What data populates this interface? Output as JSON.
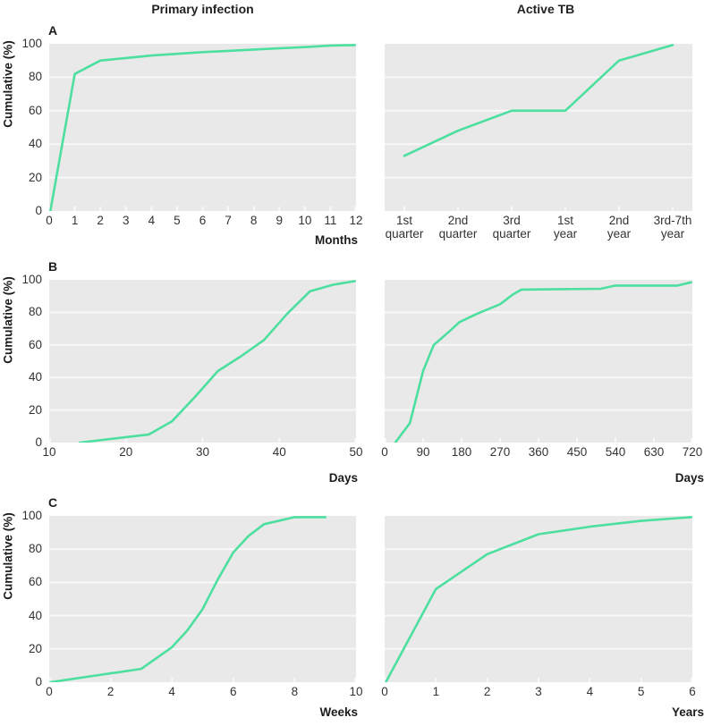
{
  "figure": {
    "column_titles": [
      "Primary infection",
      "Active TB"
    ],
    "panel_labels": [
      "A",
      "B",
      "C"
    ],
    "y_axis_label": "Cumulative (%)",
    "colors": {
      "line": "#4cdf9f",
      "plot_background": "#e9e9e9",
      "gridline": "#f8f8f8",
      "text": "#2f2f2f"
    }
  },
  "chart_data": [
    {
      "id": "primary-infection-months",
      "panel": "A",
      "column": "Primary infection",
      "type": "line",
      "xlabel": "Months",
      "xlim": [
        0,
        12
      ],
      "xticks": [
        0,
        1,
        2,
        3,
        4,
        5,
        6,
        7,
        8,
        9,
        10,
        11,
        12
      ],
      "ylabel": "Cumulative (%)",
      "ylim": [
        0,
        100
      ],
      "yticks": [
        0,
        20,
        40,
        60,
        80,
        100
      ],
      "grid": "horizontal white lines at 20,40,60,80",
      "legend": "none",
      "points": [
        [
          0,
          0
        ],
        [
          1,
          82
        ],
        [
          2,
          90
        ],
        [
          3,
          91.5
        ],
        [
          4,
          93
        ],
        [
          5,
          94
        ],
        [
          6,
          95
        ],
        [
          7,
          95.8
        ],
        [
          8,
          96.6
        ],
        [
          9,
          97.3
        ],
        [
          10,
          98
        ],
        [
          11,
          99
        ],
        [
          12,
          100
        ]
      ]
    },
    {
      "id": "active-tb-quarters-years",
      "panel": "A",
      "column": "Active TB",
      "type": "line",
      "xlabel": "",
      "categories": [
        "1st quarter",
        "2nd quarter",
        "3rd quarter",
        "1st year",
        "2nd year",
        "3rd-7th year"
      ],
      "values": [
        33,
        48,
        60,
        60,
        90,
        100
      ],
      "ylabel": "Cumulative (%)",
      "ylim": [
        0,
        100
      ],
      "yticks": [
        0,
        20,
        40,
        60,
        80,
        100
      ],
      "grid": "horizontal white lines at 20,40,60,80",
      "legend": "none"
    },
    {
      "id": "primary-infection-days",
      "panel": "B",
      "column": "Primary infection",
      "type": "line",
      "xlabel": "Days",
      "xlim": [
        10,
        50
      ],
      "xticks": [
        10,
        20,
        30,
        40,
        50
      ],
      "ylabel": "Cumulative (%)",
      "ylim": [
        0,
        100
      ],
      "yticks": [
        0,
        20,
        40,
        60,
        80,
        100
      ],
      "grid": "horizontal white lines at 20,40,60,80",
      "legend": "none",
      "points": [
        [
          14,
          0
        ],
        [
          23,
          5
        ],
        [
          26,
          13
        ],
        [
          29,
          28
        ],
        [
          32,
          44
        ],
        [
          35,
          53
        ],
        [
          38,
          63
        ],
        [
          41,
          79
        ],
        [
          44,
          93
        ],
        [
          47,
          97
        ],
        [
          50,
          100
        ]
      ]
    },
    {
      "id": "active-tb-days",
      "panel": "B",
      "column": "Active TB",
      "type": "line",
      "xlabel": "Days",
      "xlim": [
        0,
        720
      ],
      "xticks": [
        0,
        90,
        180,
        270,
        360,
        450,
        540,
        630,
        720
      ],
      "ylabel": "Cumulative (%)",
      "ylim": [
        0,
        100
      ],
      "yticks": [
        0,
        20,
        40,
        60,
        80,
        100
      ],
      "grid": "horizontal white lines at 20,40,60,80",
      "legend": "none",
      "points": [
        [
          25,
          0
        ],
        [
          59,
          12
        ],
        [
          90,
          44
        ],
        [
          115,
          60
        ],
        [
          150,
          68
        ],
        [
          175,
          74
        ],
        [
          215,
          79
        ],
        [
          270,
          85
        ],
        [
          300,
          91
        ],
        [
          320,
          94
        ],
        [
          505,
          94.5
        ],
        [
          540,
          96.5
        ],
        [
          685,
          96.5
        ],
        [
          720,
          98.5
        ]
      ]
    },
    {
      "id": "primary-infection-weeks",
      "panel": "C",
      "column": "Primary infection",
      "type": "line",
      "xlabel": "Weeks",
      "xlim": [
        0,
        10
      ],
      "xticks": [
        0,
        2,
        4,
        6,
        8,
        10
      ],
      "ylabel": "Cumulative (%)",
      "ylim": [
        0,
        100
      ],
      "yticks": [
        0,
        20,
        40,
        60,
        80,
        100
      ],
      "grid": "horizontal white lines at 20,40,60,80",
      "legend": "none",
      "points": [
        [
          0,
          0
        ],
        [
          3,
          8
        ],
        [
          4,
          21
        ],
        [
          4.5,
          31
        ],
        [
          5,
          44
        ],
        [
          5.5,
          62
        ],
        [
          6,
          78
        ],
        [
          6.5,
          88
        ],
        [
          7,
          95
        ],
        [
          8,
          99.5
        ],
        [
          9,
          100
        ]
      ]
    },
    {
      "id": "active-tb-years",
      "panel": "C",
      "column": "Active TB",
      "type": "line",
      "xlabel": "Years",
      "xlim": [
        0,
        6
      ],
      "xticks": [
        0,
        1,
        2,
        3,
        4,
        5,
        6
      ],
      "ylabel": "Cumulative (%)",
      "ylim": [
        0,
        100
      ],
      "yticks": [
        0,
        20,
        40,
        60,
        80,
        100
      ],
      "grid": "horizontal white lines at 20,40,60,80",
      "legend": "none",
      "points": [
        [
          0,
          0
        ],
        [
          1,
          56
        ],
        [
          2,
          77
        ],
        [
          3,
          89
        ],
        [
          4,
          93.5
        ],
        [
          5,
          97
        ],
        [
          6,
          100
        ]
      ]
    }
  ]
}
